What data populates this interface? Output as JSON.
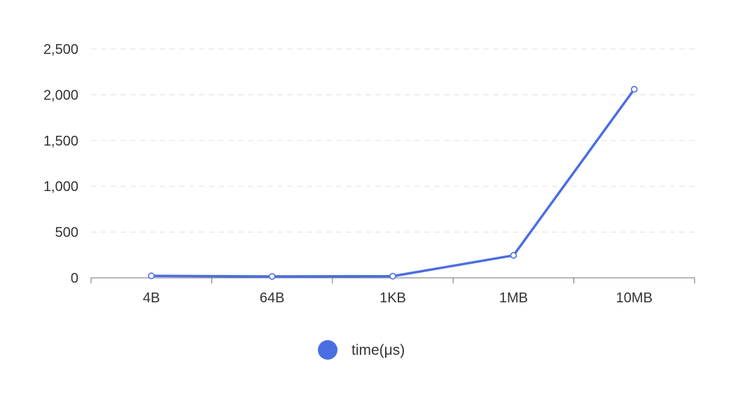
{
  "chart_data": {
    "type": "line",
    "categories": [
      "4B",
      "64B",
      "1KB",
      "1MB",
      "10MB"
    ],
    "series": [
      {
        "name": "time(μs)",
        "values": [
          22,
          15,
          18,
          245,
          2060
        ]
      }
    ],
    "ylim": [
      0,
      2500
    ],
    "yticks": [
      0,
      500,
      1000,
      1500,
      2000,
      2500
    ],
    "ytick_labels": [
      "0",
      "500",
      "1,000",
      "1,500",
      "2,000",
      "2,500"
    ],
    "grid": true,
    "legend_position": "bottom-center",
    "colors": {
      "series": "#4b6ee0",
      "axis": "#6e7079",
      "grid": "#e0e0e0",
      "label": "#333333"
    }
  }
}
